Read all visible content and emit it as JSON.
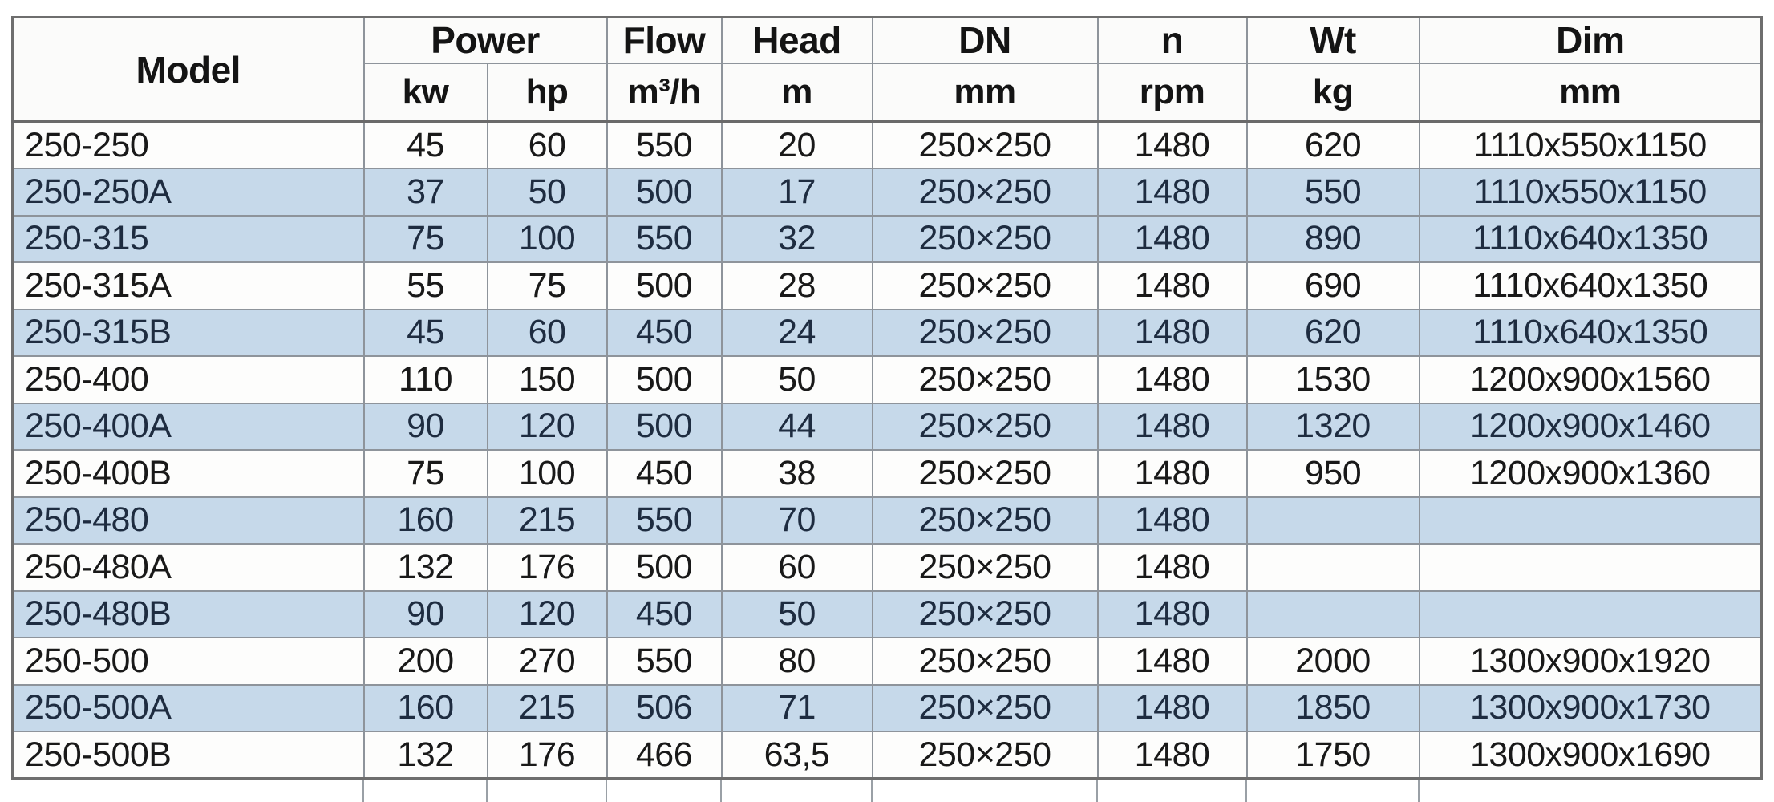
{
  "table": {
    "header": {
      "model": "Model",
      "power": "Power",
      "power_units": [
        "kw",
        "hp"
      ],
      "flow": "Flow",
      "flow_unit": "m³/h",
      "head": "Head",
      "head_unit": "m",
      "dn": "DN",
      "dn_unit": "mm",
      "n": "n",
      "n_unit": "rpm",
      "wt": "Wt",
      "wt_unit": "kg",
      "dim": "Dim",
      "dim_unit": "mm"
    },
    "row_keys": [
      "model",
      "kw",
      "hp",
      "flow",
      "head",
      "dn",
      "n",
      "wt",
      "dim"
    ],
    "rows": [
      {
        "model": "250-250",
        "kw": "45",
        "hp": "60",
        "flow": "550",
        "head": "20",
        "dn": "250×250",
        "n": "1480",
        "wt": "620",
        "dim": "1110x550x1150",
        "shaded": false
      },
      {
        "model": "250-250A",
        "kw": "37",
        "hp": "50",
        "flow": "500",
        "head": "17",
        "dn": "250×250",
        "n": "1480",
        "wt": "550",
        "dim": "1110x550x1150",
        "shaded": true
      },
      {
        "model": "250-315",
        "kw": "75",
        "hp": "100",
        "flow": "550",
        "head": "32",
        "dn": "250×250",
        "n": "1480",
        "wt": "890",
        "dim": "1110x640x1350",
        "shaded": true
      },
      {
        "model": "250-315A",
        "kw": "55",
        "hp": "75",
        "flow": "500",
        "head": "28",
        "dn": "250×250",
        "n": "1480",
        "wt": "690",
        "dim": "1110x640x1350",
        "shaded": false
      },
      {
        "model": "250-315B",
        "kw": "45",
        "hp": "60",
        "flow": "450",
        "head": "24",
        "dn": "250×250",
        "n": "1480",
        "wt": "620",
        "dim": "1110x640x1350",
        "shaded": true
      },
      {
        "model": "250-400",
        "kw": "110",
        "hp": "150",
        "flow": "500",
        "head": "50",
        "dn": "250×250",
        "n": "1480",
        "wt": "1530",
        "dim": "1200x900x1560",
        "shaded": false
      },
      {
        "model": "250-400A",
        "kw": "90",
        "hp": "120",
        "flow": "500",
        "head": "44",
        "dn": "250×250",
        "n": "1480",
        "wt": "1320",
        "dim": "1200x900x1460",
        "shaded": true
      },
      {
        "model": "250-400B",
        "kw": "75",
        "hp": "100",
        "flow": "450",
        "head": "38",
        "dn": "250×250",
        "n": "1480",
        "wt": "950",
        "dim": "1200x900x1360",
        "shaded": false
      },
      {
        "model": "250-480",
        "kw": "160",
        "hp": "215",
        "flow": "550",
        "head": "70",
        "dn": "250×250",
        "n": "1480",
        "wt": "",
        "dim": "",
        "shaded": true
      },
      {
        "model": "250-480A",
        "kw": "132",
        "hp": "176",
        "flow": "500",
        "head": "60",
        "dn": "250×250",
        "n": "1480",
        "wt": "",
        "dim": "",
        "shaded": false
      },
      {
        "model": "250-480B",
        "kw": "90",
        "hp": "120",
        "flow": "450",
        "head": "50",
        "dn": "250×250",
        "n": "1480",
        "wt": "",
        "dim": "",
        "shaded": true
      },
      {
        "model": "250-500",
        "kw": "200",
        "hp": "270",
        "flow": "550",
        "head": "80",
        "dn": "250×250",
        "n": "1480",
        "wt": "2000",
        "dim": "1300x900x1920",
        "shaded": false
      },
      {
        "model": "250-500A",
        "kw": "160",
        "hp": "215",
        "flow": "506",
        "head": "71",
        "dn": "250×250",
        "n": "1480",
        "wt": "1850",
        "dim": "1300x900x1730",
        "shaded": true
      },
      {
        "model": "250-500B",
        "kw": "132",
        "hp": "176",
        "flow": "466",
        "head": "63,5",
        "dn": "250×250",
        "n": "1480",
        "wt": "1750",
        "dim": "1300x900x1690",
        "shaded": false
      }
    ],
    "colors": {
      "shaded_row_bg": "#c6d9ea",
      "plain_row_bg": "#fdfdfc",
      "inner_border": "#8e949b",
      "outer_border": "#6e6e6e",
      "plain_text": "#191919",
      "shaded_text": "#1e2c40"
    }
  }
}
